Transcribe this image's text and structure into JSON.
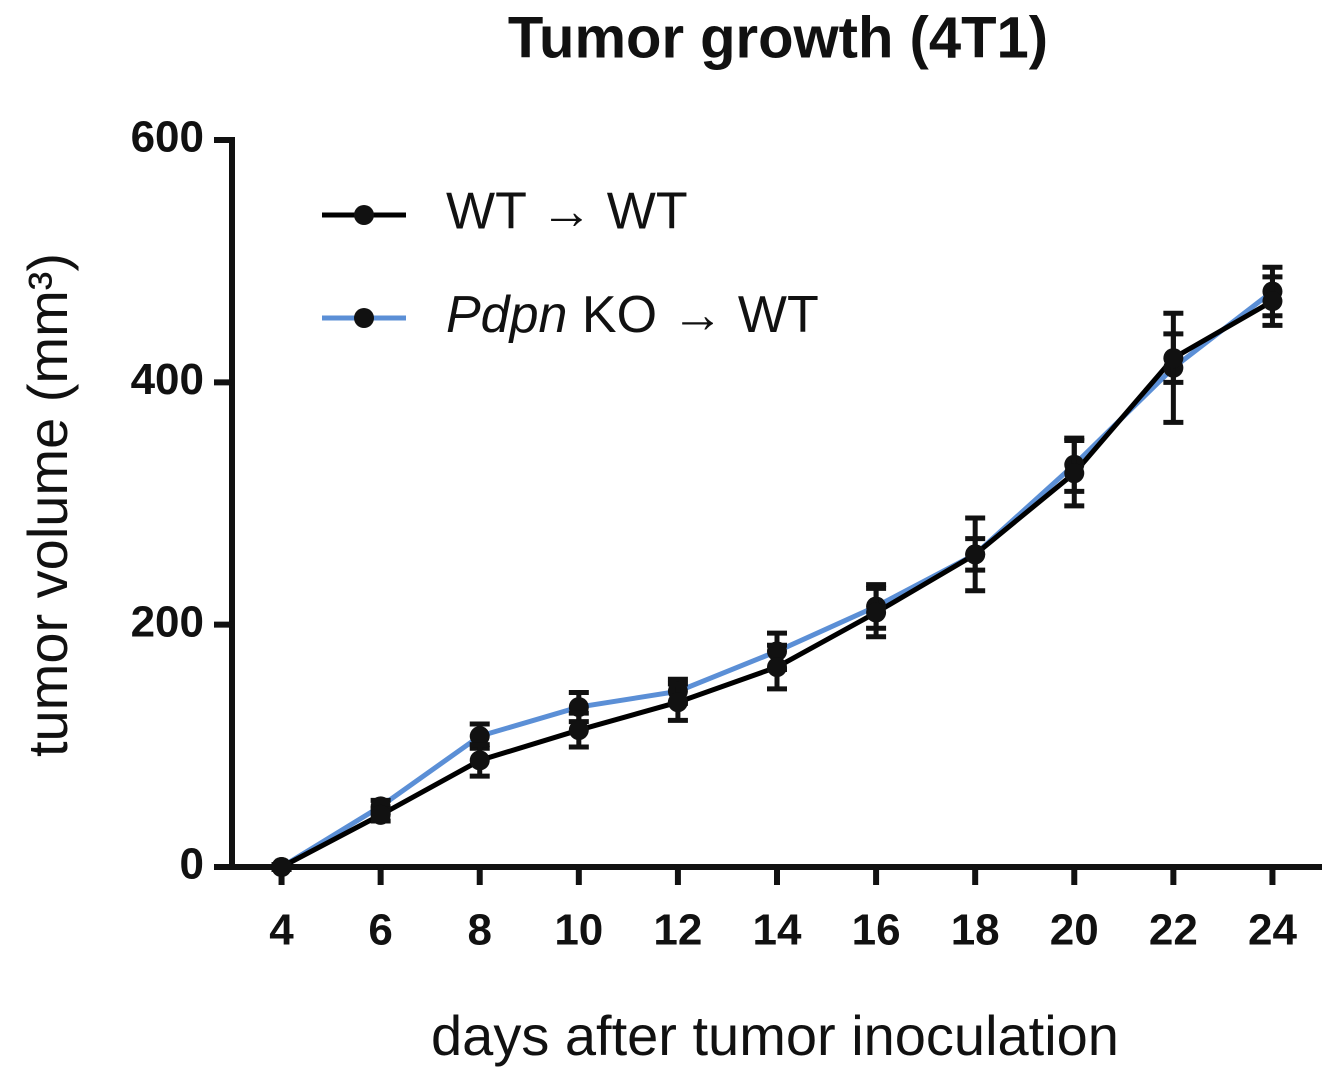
{
  "chart_data": {
    "type": "line",
    "title": "Tumor growth (4T1)",
    "x_label": "days after tumor inoculation",
    "y_label": "tumor volume (mm³)",
    "x": [
      4,
      6,
      8,
      10,
      12,
      14,
      16,
      18,
      20,
      22,
      24
    ],
    "series": [
      {
        "name": "WT → WT",
        "color": "#000000",
        "values": [
          0,
          43,
          88,
          113,
          136,
          165,
          210,
          258,
          325,
          420,
          467
        ],
        "errors": [
          2,
          5,
          13,
          14,
          15,
          18,
          20,
          30,
          27,
          20,
          20
        ]
      },
      {
        "name": "Pdpn KO → WT",
        "color": "#5b8fd6",
        "values": [
          0,
          50,
          108,
          132,
          145,
          178,
          215,
          258,
          332,
          412,
          475
        ],
        "errors": [
          2,
          5,
          10,
          12,
          10,
          15,
          18,
          13,
          22,
          45,
          20
        ]
      }
    ],
    "xlim": [
      3,
      25
    ],
    "ylim": [
      0,
      600
    ],
    "xticks": [
      4,
      6,
      8,
      10,
      12,
      14,
      16,
      18,
      20,
      22,
      24
    ],
    "yticks": [
      0,
      200,
      400,
      600
    ],
    "legend": "upper left",
    "grid": false
  }
}
